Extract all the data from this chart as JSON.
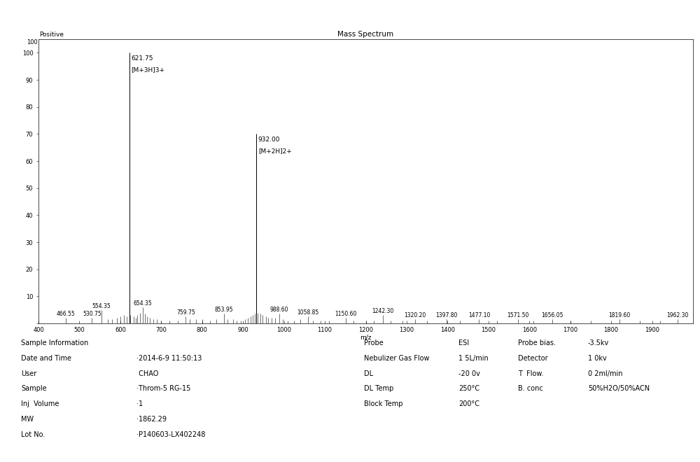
{
  "title": "Mass Spectrum",
  "title_fontsize": 7.5,
  "mode_label": "Positive",
  "xlabel": "m/z",
  "xlim": [
    400,
    2000
  ],
  "ylim": [
    0,
    105
  ],
  "xticks": [
    400,
    500,
    600,
    700,
    800,
    900,
    1000,
    1100,
    1200,
    1300,
    1400,
    1500,
    1600,
    1700,
    1800,
    1900
  ],
  "yticks": [
    0,
    10,
    20,
    30,
    40,
    50,
    60,
    70,
    80,
    90,
    100
  ],
  "main_peaks": [
    {
      "mz": 621.75,
      "intensity": 100,
      "label": "621.75",
      "annotation": "[M+3H]3+"
    },
    {
      "mz": 932.0,
      "intensity": 70,
      "label": "932.00",
      "annotation": "[M+2H]2+"
    }
  ],
  "minor_peaks": [
    {
      "mz": 466.55,
      "intensity": 2.0
    },
    {
      "mz": 530.75,
      "intensity": 2.0
    },
    {
      "mz": 554.35,
      "intensity": 5.0
    },
    {
      "mz": 570.0,
      "intensity": 1.5
    },
    {
      "mz": 580.0,
      "intensity": 1.5
    },
    {
      "mz": 592.0,
      "intensity": 2.0
    },
    {
      "mz": 600.0,
      "intensity": 2.5
    },
    {
      "mz": 608.0,
      "intensity": 3.0
    },
    {
      "mz": 615.0,
      "intensity": 2.5
    },
    {
      "mz": 625.0,
      "intensity": 3.0
    },
    {
      "mz": 633.0,
      "intensity": 2.5
    },
    {
      "mz": 638.0,
      "intensity": 2.0
    },
    {
      "mz": 642.0,
      "intensity": 3.0
    },
    {
      "mz": 648.0,
      "intensity": 4.0
    },
    {
      "mz": 654.35,
      "intensity": 6.0
    },
    {
      "mz": 660.0,
      "intensity": 3.5
    },
    {
      "mz": 666.0,
      "intensity": 2.5
    },
    {
      "mz": 672.0,
      "intensity": 2.0
    },
    {
      "mz": 680.0,
      "intensity": 1.5
    },
    {
      "mz": 690.0,
      "intensity": 1.5
    },
    {
      "mz": 700.0,
      "intensity": 1.0
    },
    {
      "mz": 720.0,
      "intensity": 1.0
    },
    {
      "mz": 740.0,
      "intensity": 1.0
    },
    {
      "mz": 759.75,
      "intensity": 2.5
    },
    {
      "mz": 770.0,
      "intensity": 1.5
    },
    {
      "mz": 785.0,
      "intensity": 1.5
    },
    {
      "mz": 800.0,
      "intensity": 1.5
    },
    {
      "mz": 820.0,
      "intensity": 1.0
    },
    {
      "mz": 835.0,
      "intensity": 1.5
    },
    {
      "mz": 853.95,
      "intensity": 3.5
    },
    {
      "mz": 862.0,
      "intensity": 1.5
    },
    {
      "mz": 875.0,
      "intensity": 1.5
    },
    {
      "mz": 885.0,
      "intensity": 1.0
    },
    {
      "mz": 895.0,
      "intensity": 1.0
    },
    {
      "mz": 905.0,
      "intensity": 1.5
    },
    {
      "mz": 912.0,
      "intensity": 2.0
    },
    {
      "mz": 918.0,
      "intensity": 2.5
    },
    {
      "mz": 924.0,
      "intensity": 3.0
    },
    {
      "mz": 928.0,
      "intensity": 3.5
    },
    {
      "mz": 936.0,
      "intensity": 4.0
    },
    {
      "mz": 942.0,
      "intensity": 3.5
    },
    {
      "mz": 948.0,
      "intensity": 3.0
    },
    {
      "mz": 956.0,
      "intensity": 2.5
    },
    {
      "mz": 962.0,
      "intensity": 2.0
    },
    {
      "mz": 970.0,
      "intensity": 2.0
    },
    {
      "mz": 978.0,
      "intensity": 2.0
    },
    {
      "mz": 988.6,
      "intensity": 3.5
    },
    {
      "mz": 998.0,
      "intensity": 1.5
    },
    {
      "mz": 1010.0,
      "intensity": 1.0
    },
    {
      "mz": 1025.0,
      "intensity": 1.0
    },
    {
      "mz": 1040.0,
      "intensity": 1.5
    },
    {
      "mz": 1058.85,
      "intensity": 2.5
    },
    {
      "mz": 1070.0,
      "intensity": 1.0
    },
    {
      "mz": 1090.0,
      "intensity": 1.0
    },
    {
      "mz": 1110.0,
      "intensity": 1.0
    },
    {
      "mz": 1150.6,
      "intensity": 2.0
    },
    {
      "mz": 1170.0,
      "intensity": 1.0
    },
    {
      "mz": 1200.0,
      "intensity": 1.0
    },
    {
      "mz": 1220.0,
      "intensity": 1.0
    },
    {
      "mz": 1242.3,
      "intensity": 3.0
    },
    {
      "mz": 1260.0,
      "intensity": 1.0
    },
    {
      "mz": 1290.0,
      "intensity": 1.0
    },
    {
      "mz": 1320.2,
      "intensity": 1.5
    },
    {
      "mz": 1350.0,
      "intensity": 1.0
    },
    {
      "mz": 1397.8,
      "intensity": 1.5
    },
    {
      "mz": 1430.0,
      "intensity": 1.0
    },
    {
      "mz": 1477.1,
      "intensity": 1.5
    },
    {
      "mz": 1520.0,
      "intensity": 1.0
    },
    {
      "mz": 1571.5,
      "intensity": 1.5
    },
    {
      "mz": 1610.0,
      "intensity": 1.0
    },
    {
      "mz": 1656.05,
      "intensity": 1.5
    },
    {
      "mz": 1700.0,
      "intensity": 1.0
    },
    {
      "mz": 1750.0,
      "intensity": 1.0
    },
    {
      "mz": 1819.6,
      "intensity": 1.5
    },
    {
      "mz": 1870.0,
      "intensity": 1.0
    },
    {
      "mz": 1920.0,
      "intensity": 1.0
    },
    {
      "mz": 1962.3,
      "intensity": 1.5
    }
  ],
  "peak_labels": [
    {
      "mz": 466.55,
      "label": "466.55",
      "intensity": 2.0
    },
    {
      "mz": 530.75,
      "label": "530.75",
      "intensity": 2.0
    },
    {
      "mz": 554.35,
      "label": "554.35",
      "intensity": 5.0
    },
    {
      "mz": 654.35,
      "label": "654.35",
      "intensity": 6.0
    },
    {
      "mz": 759.75,
      "label": "759.75",
      "intensity": 2.5
    },
    {
      "mz": 853.95,
      "label": "853.95",
      "intensity": 3.5
    },
    {
      "mz": 988.6,
      "label": "988.60",
      "intensity": 3.5
    },
    {
      "mz": 1058.85,
      "label": "1058.85",
      "intensity": 2.5
    },
    {
      "mz": 1150.6,
      "label": "1150.60",
      "intensity": 2.0
    },
    {
      "mz": 1242.3,
      "label": "1242.30",
      "intensity": 3.0
    },
    {
      "mz": 1320.2,
      "label": "1320.20",
      "intensity": 1.5
    },
    {
      "mz": 1397.8,
      "label": "1397.80",
      "intensity": 1.5
    },
    {
      "mz": 1477.1,
      "label": "1477.10",
      "intensity": 1.5
    },
    {
      "mz": 1571.5,
      "label": "1571.50",
      "intensity": 1.5
    },
    {
      "mz": 1656.05,
      "label": "1656.05",
      "intensity": 1.5
    },
    {
      "mz": 1819.6,
      "label": "1819.60",
      "intensity": 1.5
    },
    {
      "mz": 1962.3,
      "label": "1962.30",
      "intensity": 1.5
    }
  ],
  "info_left_labels": [
    "Sample Information",
    "Date and Time",
    "User",
    "Sample",
    "Inj  Volume",
    "MW",
    "Lot No."
  ],
  "info_left_values": [
    "",
    "·2014-6-9 11:50:13",
    " CHAO",
    "·Throm-5 RG-15",
    "·1",
    "·1862.29",
    "·P140603-LX402248"
  ],
  "info_right_col1": [
    "Probe",
    "Nebulizer Gas Flow",
    "DL",
    "DL Temp",
    "Block Temp"
  ],
  "info_right_col2": [
    "ESI",
    "1 5L/min",
    "-20 0v",
    "250°C",
    "200°C"
  ],
  "info_right_col3": [
    "Probe bias.",
    "Detector",
    "T  Flow.",
    "B. conc",
    ""
  ],
  "info_right_col4": [
    "-3.5kv",
    "1 0kv",
    "0 2ml/min",
    "50%H2O/50%ACN",
    ""
  ],
  "background_color": "#ffffff",
  "line_color": "#000000",
  "font_size_ticks": 6.0,
  "font_size_labels": 6.5,
  "font_size_peak": 5.5,
  "font_size_info": 7.0
}
